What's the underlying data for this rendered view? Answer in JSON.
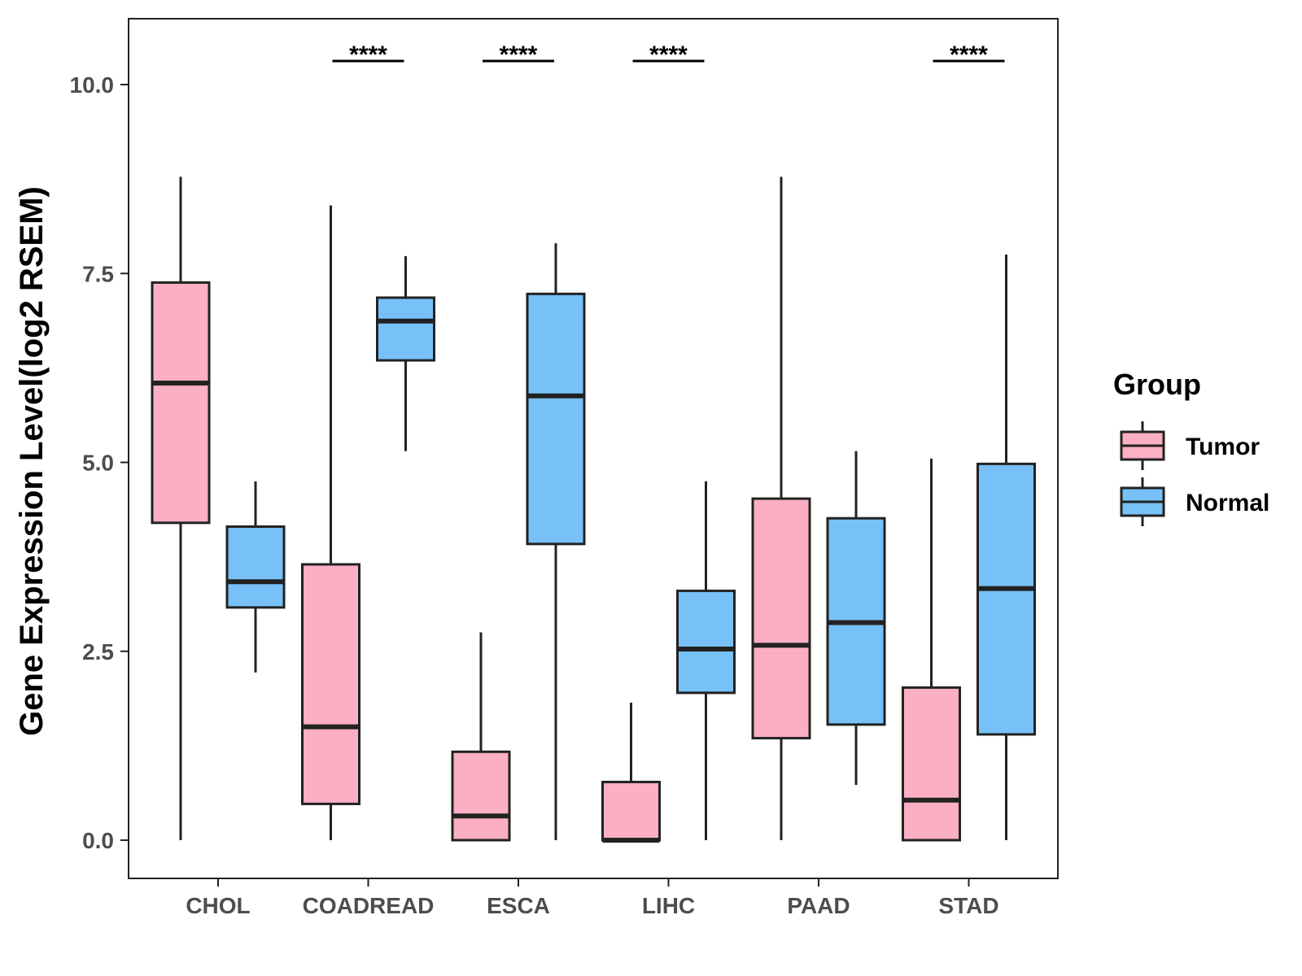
{
  "chart_data": {
    "type": "boxplot",
    "title": "",
    "xlabel": "",
    "ylabel": "Gene Expression Level(log2 RSEM)",
    "ylim": [
      -0.5,
      10.8
    ],
    "yticks": [
      "0.0",
      "2.5",
      "5.0",
      "7.5",
      "10.0"
    ],
    "categories": [
      "CHOL",
      "COADREAD",
      "ESCA",
      "LIHC",
      "PAAD",
      "STAD"
    ],
    "legend": {
      "title": "Group",
      "position": "right",
      "entries": [
        {
          "name": "Tumor",
          "color": "#FBAFC2"
        },
        {
          "name": "Normal",
          "color": "#78C1F8"
        }
      ]
    },
    "series": [
      {
        "name": "Tumor",
        "color": "#FBAFC2",
        "boxes": [
          {
            "category": "CHOL",
            "min": 0.0,
            "q1": 4.2,
            "median": 6.05,
            "q3": 7.38,
            "max": 8.78
          },
          {
            "category": "COADREAD",
            "min": 0.0,
            "q1": 0.48,
            "median": 1.5,
            "q3": 3.65,
            "max": 8.4
          },
          {
            "category": "ESCA",
            "min": 0.0,
            "q1": 0.0,
            "median": 0.32,
            "q3": 1.17,
            "max": 2.75
          },
          {
            "category": "LIHC",
            "min": 0.0,
            "q1": 0.0,
            "median": 0.0,
            "q3": 0.77,
            "max": 1.82
          },
          {
            "category": "PAAD",
            "min": 0.0,
            "q1": 1.35,
            "median": 2.58,
            "q3": 4.52,
            "max": 8.78
          },
          {
            "category": "STAD",
            "min": 0.0,
            "q1": 0.0,
            "median": 0.53,
            "q3": 2.02,
            "max": 5.05
          }
        ]
      },
      {
        "name": "Normal",
        "color": "#78C1F8",
        "boxes": [
          {
            "category": "CHOL",
            "min": 2.22,
            "q1": 3.08,
            "median": 3.42,
            "q3": 4.15,
            "max": 4.75
          },
          {
            "category": "COADREAD",
            "min": 5.15,
            "q1": 6.35,
            "median": 6.87,
            "q3": 7.18,
            "max": 7.73
          },
          {
            "category": "ESCA",
            "min": 0.0,
            "q1": 3.92,
            "median": 5.88,
            "q3": 7.23,
            "max": 7.9
          },
          {
            "category": "LIHC",
            "min": 0.0,
            "q1": 1.95,
            "median": 2.53,
            "q3": 3.3,
            "max": 4.75
          },
          {
            "category": "PAAD",
            "min": 0.73,
            "q1": 1.53,
            "median": 2.88,
            "q3": 4.26,
            "max": 5.15
          },
          {
            "category": "STAD",
            "min": 0.0,
            "q1": 1.4,
            "median": 3.33,
            "q3": 4.98,
            "max": 7.75
          }
        ]
      }
    ],
    "annotations": [
      {
        "category": "COADREAD",
        "text": "****"
      },
      {
        "category": "ESCA",
        "text": "****"
      },
      {
        "category": "LIHC",
        "text": "****"
      },
      {
        "category": "STAD",
        "text": "****"
      }
    ]
  }
}
